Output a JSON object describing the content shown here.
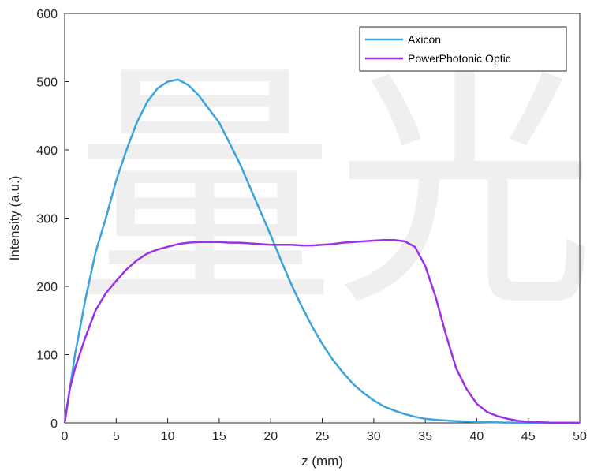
{
  "watermark": "量光",
  "chart_data": {
    "type": "line",
    "title": "",
    "xlabel": "z (mm)",
    "ylabel": "Intensity (a.u.)",
    "xlim": [
      0,
      50
    ],
    "ylim": [
      0,
      600
    ],
    "xticks": [
      0,
      5,
      10,
      15,
      20,
      25,
      30,
      35,
      40,
      45,
      50
    ],
    "yticks": [
      0,
      100,
      200,
      300,
      400,
      500,
      600
    ],
    "grid": false,
    "legend_position": "top-right",
    "series": [
      {
        "name": "Axicon",
        "color": "#3aa3dc",
        "x": [
          0,
          1,
          2,
          3,
          4,
          5,
          6,
          7,
          8,
          9,
          10,
          11,
          12,
          13,
          14,
          15,
          16,
          17,
          18,
          19,
          20,
          21,
          22,
          23,
          24,
          25,
          26,
          27,
          28,
          29,
          30,
          31,
          32,
          33,
          34,
          35,
          36,
          37,
          38,
          39,
          40,
          41,
          42,
          43,
          44,
          45,
          46,
          47,
          48,
          49,
          50
        ],
        "y": [
          0,
          100,
          180,
          250,
          300,
          355,
          400,
          440,
          470,
          490,
          500,
          503,
          495,
          480,
          460,
          440,
          410,
          380,
          345,
          310,
          275,
          238,
          203,
          171,
          142,
          116,
          93,
          74,
          57,
          44,
          33,
          24,
          18,
          13,
          9,
          6,
          4.5,
          3.5,
          2.5,
          2,
          1.5,
          1,
          0.7,
          0.5,
          0.4,
          0.3,
          0.2,
          0.1,
          0.1,
          0.1,
          0
        ]
      },
      {
        "name": "PowerPhotonic Optic",
        "color": "#9b30e8",
        "x": [
          0,
          0.5,
          1,
          2,
          3,
          4,
          5,
          6,
          7,
          8,
          9,
          10,
          11,
          12,
          13,
          14,
          15,
          16,
          17,
          18,
          19,
          20,
          21,
          22,
          23,
          24,
          25,
          26,
          27,
          28,
          29,
          30,
          31,
          32,
          33,
          34,
          35,
          36,
          37,
          38,
          39,
          40,
          41,
          42,
          43,
          44,
          45,
          46,
          47,
          48,
          49,
          50
        ],
        "y": [
          0,
          50,
          80,
          125,
          165,
          190,
          208,
          225,
          238,
          248,
          254,
          258,
          262,
          264,
          265,
          265,
          265,
          264,
          264,
          263,
          262,
          261,
          261,
          261,
          260,
          260,
          261,
          262,
          264,
          265,
          266,
          267,
          268,
          268,
          266,
          258,
          230,
          185,
          130,
          80,
          50,
          28,
          16,
          10,
          6,
          3,
          1.5,
          1,
          0.5,
          0.3,
          0.2,
          0
        ]
      }
    ]
  }
}
